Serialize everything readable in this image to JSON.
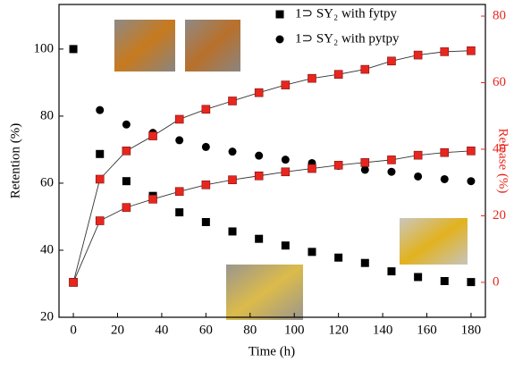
{
  "chart_data": {
    "type": "scatter",
    "x_label": "Time (h)",
    "y_label": "Retention (%)",
    "y2_label": "Release (%)",
    "x": [
      0,
      12,
      24,
      36,
      48,
      60,
      72,
      84,
      96,
      108,
      120,
      132,
      144,
      156,
      168,
      180
    ],
    "xlim": [
      -6.5,
      186.5
    ],
    "xticks": [
      0,
      20,
      40,
      60,
      80,
      100,
      120,
      140,
      160,
      180
    ],
    "ylim": [
      20,
      113.3
    ],
    "yticks": [
      20,
      40,
      60,
      80,
      100
    ],
    "y2lim": [
      -10.5,
      83.5
    ],
    "y2ticks": [
      0,
      20,
      40,
      60,
      80
    ],
    "y2_color": "#e8261e",
    "series": [
      {
        "name": "1⊃ SY₂ with fytpy",
        "marker": "square",
        "color": "#000000",
        "values": [
          100,
          68.7,
          60.6,
          56.2,
          51.3,
          48.4,
          45.6,
          43.4,
          41.4,
          39.5,
          37.8,
          36.2,
          33.7,
          32,
          30.8,
          30.5
        ]
      },
      {
        "name": "1⊃ SY₂ with pytpy",
        "marker": "circle",
        "color": "#000000",
        "values": [
          100,
          81.8,
          77.5,
          75,
          72.8,
          70.8,
          69.4,
          68.2,
          67,
          66,
          65.2,
          64,
          63.4,
          62,
          61.2,
          60.6
        ]
      },
      {
        "axis": "y2",
        "marker": "square",
        "color": "#e8261e",
        "line": true,
        "values": [
          0,
          31,
          39.5,
          44,
          49,
          52,
          54.5,
          57,
          59.3,
          61.3,
          62.5,
          64,
          66.5,
          68.3,
          69.3,
          69.6
        ]
      },
      {
        "axis": "y2",
        "marker": "square",
        "color": "#e8261e",
        "line": true,
        "values": [
          0,
          18.5,
          22.5,
          25,
          27.3,
          29.3,
          30.8,
          32,
          33.2,
          34.2,
          35.2,
          36,
          36.8,
          38.2,
          39,
          39.5
        ]
      }
    ]
  }
}
